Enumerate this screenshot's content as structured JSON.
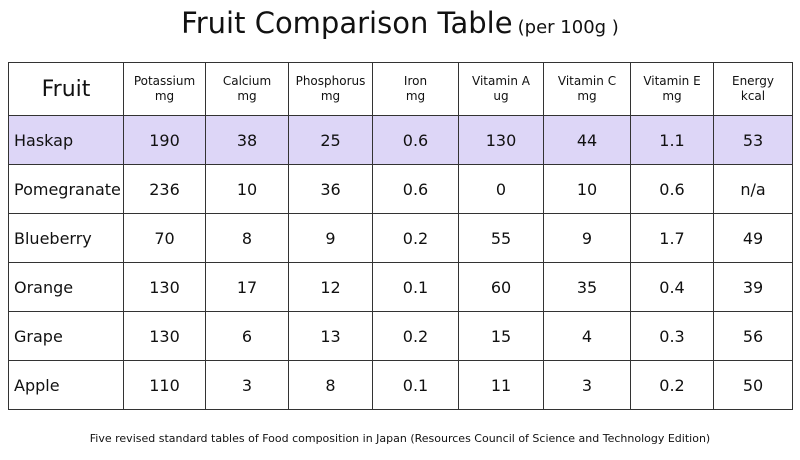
{
  "header": {
    "title": "Fruit Comparison Table",
    "subtitle": "(per 100g )"
  },
  "table": {
    "columns": [
      {
        "name": "Fruit"
      },
      {
        "name": "Potassium",
        "unit": "mg"
      },
      {
        "name": "Calcium",
        "unit": "mg"
      },
      {
        "name": "Phosphorus",
        "unit": "mg"
      },
      {
        "name": "Iron",
        "unit": "mg"
      },
      {
        "name": "Vitamin A",
        "unit": "ug"
      },
      {
        "name": "Vitamin C",
        "unit": "mg"
      },
      {
        "name": "Vitamin E",
        "unit": "mg"
      },
      {
        "name": "Energy",
        "unit": "kcal"
      }
    ],
    "highlight_row": 0,
    "rows": [
      [
        "Haskap",
        "190",
        "38",
        "25",
        "0.6",
        "130",
        "44",
        "1.1",
        "53"
      ],
      [
        "Pomegranate",
        "236",
        "10",
        "36",
        "0.6",
        "0",
        "10",
        "0.6",
        "n/a"
      ],
      [
        "Blueberry",
        "70",
        "8",
        "9",
        "0.2",
        "55",
        "9",
        "1.7",
        "49"
      ],
      [
        "Orange",
        "130",
        "17",
        "12",
        "0.1",
        "60",
        "35",
        "0.4",
        "39"
      ],
      [
        "Grape",
        "130",
        "6",
        "13",
        "0.2",
        "15",
        "4",
        "0.3",
        "56"
      ],
      [
        "Apple",
        "110",
        "3",
        "8",
        "0.1",
        "11",
        "3",
        "0.2",
        "50"
      ]
    ]
  },
  "footer": {
    "source": "Five revised standard tables of Food composition in Japan (Resources Council of Science and Technology Edition)"
  }
}
